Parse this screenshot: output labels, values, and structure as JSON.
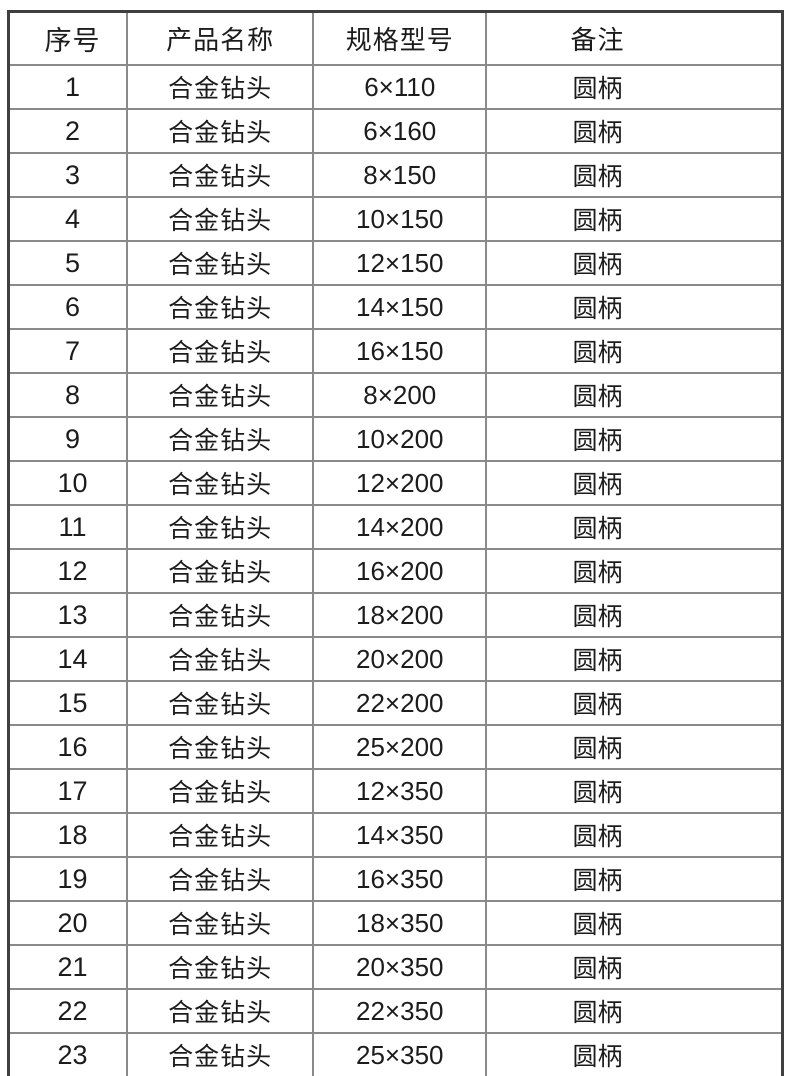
{
  "colors": {
    "background": "#ffffff",
    "text": "#1c1c1c",
    "border_outer": "#3f3f3f",
    "border_inner": "#8a8a8a"
  },
  "table": {
    "headers": {
      "no": "序号",
      "name": "产品名称",
      "spec": "规格型号",
      "remark": "备注"
    },
    "rows": [
      {
        "no": "1",
        "name": "合金钻头",
        "spec": "6×110",
        "remark": "圆柄"
      },
      {
        "no": "2",
        "name": "合金钻头",
        "spec": "6×160",
        "remark": "圆柄"
      },
      {
        "no": "3",
        "name": "合金钻头",
        "spec": "8×150",
        "remark": "圆柄"
      },
      {
        "no": "4",
        "name": "合金钻头",
        "spec": "10×150",
        "remark": "圆柄"
      },
      {
        "no": "5",
        "name": "合金钻头",
        "spec": "12×150",
        "remark": "圆柄"
      },
      {
        "no": "6",
        "name": "合金钻头",
        "spec": "14×150",
        "remark": "圆柄"
      },
      {
        "no": "7",
        "name": "合金钻头",
        "spec": "16×150",
        "remark": "圆柄"
      },
      {
        "no": "8",
        "name": "合金钻头",
        "spec": "8×200",
        "remark": "圆柄"
      },
      {
        "no": "9",
        "name": "合金钻头",
        "spec": "10×200",
        "remark": "圆柄"
      },
      {
        "no": "10",
        "name": "合金钻头",
        "spec": "12×200",
        "remark": "圆柄"
      },
      {
        "no": "11",
        "name": "合金钻头",
        "spec": "14×200",
        "remark": "圆柄"
      },
      {
        "no": "12",
        "name": "合金钻头",
        "spec": "16×200",
        "remark": "圆柄"
      },
      {
        "no": "13",
        "name": "合金钻头",
        "spec": "18×200",
        "remark": "圆柄"
      },
      {
        "no": "14",
        "name": "合金钻头",
        "spec": "20×200",
        "remark": "圆柄"
      },
      {
        "no": "15",
        "name": "合金钻头",
        "spec": "22×200",
        "remark": "圆柄"
      },
      {
        "no": "16",
        "name": "合金钻头",
        "spec": "25×200",
        "remark": "圆柄"
      },
      {
        "no": "17",
        "name": "合金钻头",
        "spec": "12×350",
        "remark": "圆柄"
      },
      {
        "no": "18",
        "name": "合金钻头",
        "spec": "14×350",
        "remark": "圆柄"
      },
      {
        "no": "19",
        "name": "合金钻头",
        "spec": "16×350",
        "remark": "圆柄"
      },
      {
        "no": "20",
        "name": "合金钻头",
        "spec": "18×350",
        "remark": "圆柄"
      },
      {
        "no": "21",
        "name": "合金钻头",
        "spec": "20×350",
        "remark": "圆柄"
      },
      {
        "no": "22",
        "name": "合金钻头",
        "spec": "22×350",
        "remark": "圆柄"
      },
      {
        "no": "23",
        "name": "合金钻头",
        "spec": "25×350",
        "remark": "圆柄"
      }
    ]
  }
}
